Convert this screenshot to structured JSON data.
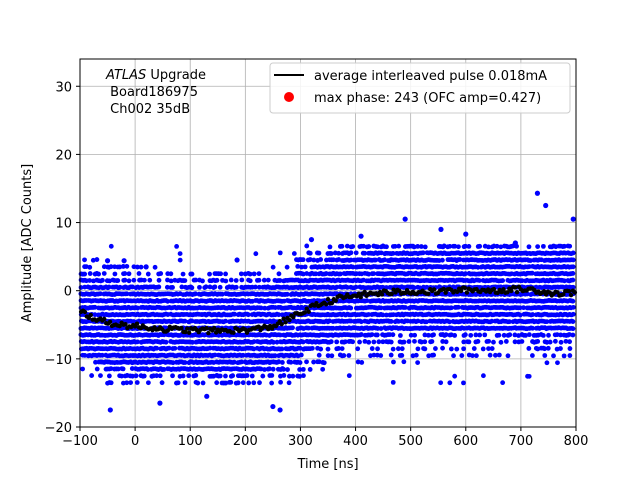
{
  "chart_data": {
    "type": "scatter",
    "xlabel": "Time [ns]",
    "ylabel": "Amplitude [ADC Counts]",
    "xlim": [
      -100,
      800
    ],
    "ylim": [
      -20,
      34
    ],
    "x_ticks": [
      "−100",
      "0",
      "100",
      "200",
      "300",
      "400",
      "500",
      "600",
      "700",
      "800"
    ],
    "x_tick_values": [
      -100,
      0,
      100,
      200,
      300,
      400,
      500,
      600,
      700,
      800
    ],
    "y_ticks": [
      "−20",
      "−10",
      "0",
      "10",
      "20",
      "30"
    ],
    "y_tick_values": [
      -20,
      -10,
      0,
      10,
      20,
      30
    ],
    "grid": true,
    "legend_placement": "top-right",
    "annotation": {
      "line1_italic": "ATLAS",
      "line1_rest": " Upgrade",
      "line2": " Board186975",
      "line3": " Ch002 35dB"
    },
    "series": [
      {
        "name": "average interleaved pulse 0.018mA",
        "kind": "line",
        "color": "#000000",
        "x": [
          -100,
          -75,
          -50,
          -25,
          0,
          25,
          50,
          75,
          100,
          125,
          150,
          175,
          200,
          225,
          250,
          275,
          300,
          325,
          350,
          375,
          400,
          425,
          450,
          475,
          500,
          525,
          550,
          575,
          600,
          625,
          650,
          675,
          700,
          725,
          750,
          775,
          800
        ],
        "y": [
          -3.0,
          -4.0,
          -4.7,
          -5.0,
          -5.2,
          -5.4,
          -5.6,
          -5.7,
          -5.8,
          -5.8,
          -5.9,
          -5.8,
          -5.8,
          -5.6,
          -5.2,
          -4.3,
          -3.3,
          -2.3,
          -1.6,
          -1.0,
          -0.7,
          -0.5,
          -0.3,
          -0.2,
          -0.1,
          -0.2,
          -0.1,
          0.0,
          0.1,
          0.1,
          0.0,
          0.1,
          0.2,
          0.1,
          -0.3,
          -0.4,
          -0.2
        ]
      },
      {
        "name": "max phase: 243 (OFC amp=0.427)",
        "kind": "marker",
        "color": "#ff0000",
        "x": [],
        "y": []
      },
      {
        "name": "",
        "kind": "scatter",
        "color": "#0000ff",
        "description_levels": [
          -13.5,
          -12.5,
          -11.0,
          -10.0,
          -9.0,
          -8.0,
          -7.0,
          -6.0,
          -5.0,
          -4.0,
          -3.0,
          -2.0,
          -1.0,
          0.0,
          1.0,
          2.0,
          3.0,
          3.5
        ],
        "outliers": [
          {
            "x": -45,
            "y": -17.5
          },
          {
            "x": 45,
            "y": -16.5
          },
          {
            "x": 130,
            "y": -15.5
          },
          {
            "x": 250,
            "y": -17.0
          },
          {
            "x": 263,
            "y": -17.5
          },
          {
            "x": 730,
            "y": 14.3
          },
          {
            "x": 745,
            "y": 12.5
          },
          {
            "x": 795,
            "y": 10.5
          },
          {
            "x": 490,
            "y": 10.5
          },
          {
            "x": 555,
            "y": 9.0
          },
          {
            "x": 320,
            "y": 7.5
          },
          {
            "x": 410,
            "y": 8.0
          },
          {
            "x": 600,
            "y": 8.3
          },
          {
            "x": 690,
            "y": 7.0
          },
          {
            "x": -20,
            "y": 4.4
          },
          {
            "x": -50,
            "y": 4.4
          },
          {
            "x": 20,
            "y": 3.5
          },
          {
            "x": 185,
            "y": 4.5
          }
        ]
      }
    ]
  }
}
